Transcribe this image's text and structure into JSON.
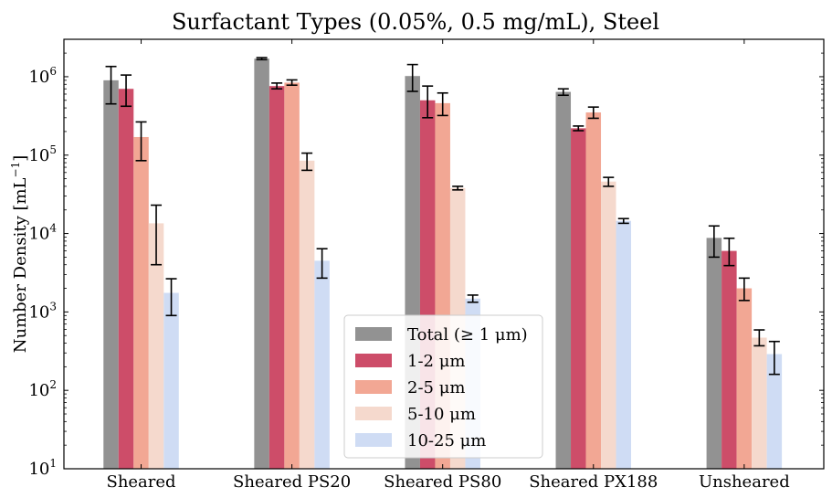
{
  "chart_data": {
    "type": "bar",
    "title": "Surfactant Types (0.05%, 0.5 mg/mL), Steel",
    "xlabel": "",
    "ylabel": "Number Density [mL",
    "ylabel_sup": "−1",
    "ylabel_close": "]",
    "yscale": "log",
    "ylim": [
      10,
      3000000
    ],
    "yticks": [
      {
        "value": 10,
        "base": "10",
        "exp": "1"
      },
      {
        "value": 100,
        "base": "10",
        "exp": "2"
      },
      {
        "value": 1000,
        "base": "10",
        "exp": "3"
      },
      {
        "value": 10000,
        "base": "10",
        "exp": "4"
      },
      {
        "value": 100000,
        "base": "10",
        "exp": "5"
      },
      {
        "value": 1000000,
        "base": "10",
        "exp": "6"
      }
    ],
    "categories": [
      "Sheared",
      "Sheared PS20",
      "Sheared PS80",
      "Sheared PX188",
      "Unsheared"
    ],
    "grid": false,
    "legend_position": "bottom-center",
    "series": [
      {
        "name": "Total (≥ 1 μm)",
        "color": "#929292",
        "values": [
          900000,
          1700000,
          1020000,
          640000,
          8800
        ],
        "err_low": [
          450000,
          1650000,
          650000,
          580000,
          5000
        ],
        "err_high": [
          1350000,
          1750000,
          1430000,
          700000,
          12500
        ]
      },
      {
        "name": "1-2 μm",
        "color": "#cd4d69",
        "values": [
          700000,
          760000,
          500000,
          220000,
          6000
        ],
        "err_low": [
          420000,
          700000,
          300000,
          205000,
          3900
        ],
        "err_high": [
          1050000,
          830000,
          760000,
          235000,
          8700
        ]
      },
      {
        "name": "2-5 μm",
        "color": "#f2a794",
        "values": [
          170000,
          840000,
          460000,
          350000,
          2000
        ],
        "err_low": [
          85000,
          780000,
          320000,
          295000,
          1400
        ],
        "err_high": [
          265000,
          910000,
          620000,
          410000,
          2700
        ]
      },
      {
        "name": "5-10 μm",
        "color": "#f5d9cd",
        "values": [
          13500,
          85000,
          38000,
          46000,
          470
        ],
        "err_low": [
          4000,
          64000,
          36000,
          40000,
          370
        ],
        "err_high": [
          23000,
          106000,
          40000,
          52000,
          590
        ]
      },
      {
        "name": "10-25 μm",
        "color": "#cfdcf4",
        "values": [
          1750,
          4500,
          1480,
          14500,
          290
        ],
        "err_low": [
          900,
          2700,
          1330,
          13500,
          160
        ],
        "err_high": [
          2650,
          6400,
          1640,
          15500,
          420
        ]
      }
    ]
  }
}
